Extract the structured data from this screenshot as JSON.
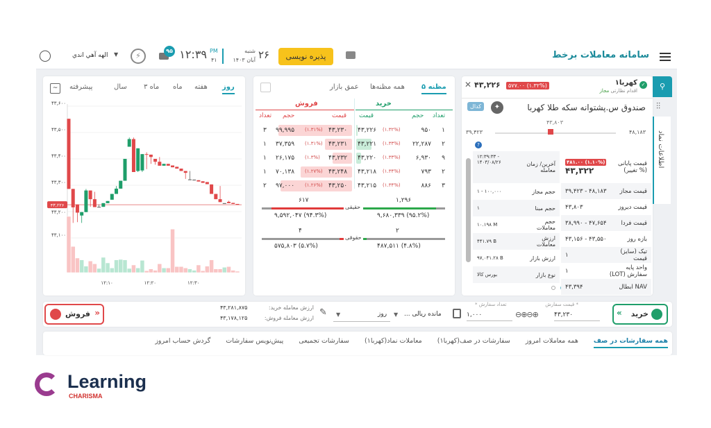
{
  "header": {
    "title": "سامانه معاملات برخط",
    "ipo_button": "پذیره نویسی",
    "day_num": "۲۶",
    "weekday": "شنبه",
    "month_year": "آبان ۱۴۰۳",
    "time": "۱۲:۳۹",
    "ampm": "PM",
    "seconds": "۴۱",
    "message_count": "۹۵",
    "user_name": "الهه آهي اندي",
    "icons": [
      "menu-icon",
      "wallet-icon",
      "mail-icon",
      "plug-icon",
      "user-icon"
    ]
  },
  "chart_panel": {
    "tabs": [
      "روز",
      "هفته",
      "ماه",
      "۳ ماه",
      "سال",
      "پیشرفته"
    ],
    "active_tab": "روز"
  },
  "chart_data": {
    "type": "candlestick",
    "ylim": [
      43100,
      43600
    ],
    "y_ticks": [
      "۴۳,۶۰۰",
      "۴۳,۵۰۰",
      "۴۳,۴۰۰",
      "۴۳,۳۰۰",
      "۴۳,۲۰۰",
      "۴۳,۱۰۰"
    ],
    "y_tick_values": [
      43600,
      43500,
      43400,
      43300,
      43200,
      43100
    ],
    "x": [
      "12:01",
      "12:02",
      "12:03",
      "12:04",
      "12:05",
      "12:06",
      "12:07",
      "12:08",
      "12:09",
      "12:10",
      "12:11",
      "12:12",
      "12:13",
      "12:14",
      "12:15",
      "12:16",
      "12:17",
      "12:18",
      "12:19",
      "12:20",
      "12:21",
      "12:22",
      "12:23",
      "12:24",
      "12:25",
      "12:26",
      "12:27",
      "12:28",
      "12:29",
      "12:30",
      "12:31",
      "12:32",
      "12:33",
      "12:34",
      "12:35",
      "12:36",
      "12:37",
      "12:38",
      "12:39",
      "12:40"
    ],
    "x_ticks": [
      {
        "at": "12:10",
        "label": "۱۲:۱۰"
      },
      {
        "at": "12:20",
        "label": "۱۲:۲۰"
      },
      {
        "at": "12:30",
        "label": "۱۲:۳۰"
      }
    ],
    "ohlc": [
      [
        43552,
        43552,
        43286,
        43286
      ],
      [
        43286,
        43286,
        43157,
        43216
      ],
      [
        43227,
        43227,
        43160,
        43196
      ],
      [
        43185,
        43198,
        43157,
        43198
      ],
      [
        43198,
        43286,
        43198,
        43280
      ],
      [
        43280,
        43280,
        43218,
        43247
      ],
      [
        43247,
        43275,
        43217,
        43217
      ],
      [
        43218,
        43227,
        43218,
        43218
      ],
      [
        43218,
        43232,
        43218,
        43232
      ],
      [
        43232,
        43240,
        43232,
        43240
      ],
      [
        43245,
        43267,
        43245,
        43267
      ],
      [
        43267,
        43297,
        43267,
        43287
      ],
      [
        43287,
        43317,
        43287,
        43317
      ],
      [
        43317,
        43400,
        43317,
        43400
      ],
      [
        43446,
        43481,
        43446,
        43475
      ],
      [
        43475,
        43481,
        43350,
        43350
      ],
      [
        43354,
        43440,
        43350,
        43440
      ],
      [
        43356,
        43418,
        43350,
        43418
      ],
      [
        43418,
        43425,
        43361,
        43416
      ],
      [
        43416,
        43416,
        43381,
        43407
      ],
      [
        43400,
        43400,
        43378,
        43389
      ],
      [
        43389,
        43407,
        43374,
        43374
      ],
      [
        43374,
        43381,
        43374,
        43381
      ],
      [
        43381,
        43381,
        43374,
        43374
      ],
      [
        43375,
        43375,
        43368,
        43368
      ],
      [
        43370,
        43370,
        43363,
        43363
      ],
      [
        43363,
        43363,
        43354,
        43354
      ],
      [
        43354,
        43354,
        43324,
        43347
      ],
      [
        43322,
        43354,
        43322,
        43322
      ],
      [
        43321,
        43321,
        43321,
        43321
      ],
      [
        43319,
        43319,
        43314,
        43314
      ],
      [
        43315,
        43315,
        43309,
        43309
      ],
      [
        43312,
        43312,
        43304,
        43304
      ],
      [
        43303,
        43303,
        43267,
        43267
      ],
      [
        43267,
        43267,
        43247,
        43247
      ],
      [
        43247,
        43297,
        43236,
        43236
      ],
      [
        43232,
        43232,
        43232,
        43232
      ],
      [
        43237,
        43241,
        43232,
        43232
      ],
      [
        43233,
        43233,
        43229,
        43229
      ],
      [
        43229,
        43229,
        43225,
        43225
      ]
    ],
    "volume": [
      243,
      113,
      63,
      55,
      28,
      50,
      38,
      18,
      66,
      42,
      20,
      55,
      57,
      55,
      18,
      33,
      20,
      53,
      8,
      16,
      10,
      38,
      20,
      20,
      188,
      26,
      26,
      20,
      16,
      10,
      33,
      8,
      28,
      55,
      16,
      16,
      23,
      26,
      10,
      6
    ],
    "last_price": 43226,
    "last_price_label": "۴۳,۲۲۶",
    "up_color": "#1f9e6a",
    "down_color": "#e0484a"
  },
  "order_book": {
    "tabs": [
      "۵ مظنه",
      "همه مظنه‌ها",
      "عمق بازار"
    ],
    "buy_title": "خرید",
    "sell_title": "فروش",
    "buy_headers": {
      "count": "تعداد",
      "volume": "حجم",
      "price": "قیمت"
    },
    "sell_headers": {
      "count": "تعداد",
      "volume": "حجم",
      "price": "قیمت"
    },
    "rows": [
      {
        "buy_count": "۱",
        "buy_volume": "۹۵۰",
        "buy_price": "۴۳,۲۲۶",
        "buy_pct": "(۱.۳۲%)",
        "buy_depth": 0.02,
        "sell_price": "۴۳,۲۳۰",
        "sell_pct": "(۱.۳۱%)",
        "sell_volume": "۹۹,۹۹۵",
        "sell_count": "۳",
        "sell_depth": 1.0
      },
      {
        "buy_count": "۲",
        "buy_volume": "۲۲,۲۸۷",
        "buy_price": "۴۳,۲۲۱",
        "buy_pct": "(۱.۳۳%)",
        "buy_depth": 0.22,
        "sell_price": "۴۳,۲۳۱",
        "sell_pct": "(۱.۳۱%)",
        "sell_volume": "۳۷,۳۵۹",
        "sell_count": "۱",
        "sell_depth": 0.37
      },
      {
        "buy_count": "۹",
        "buy_volume": "۶,۹۳۰",
        "buy_price": "۴۳,۲۲۰",
        "buy_pct": "(۱.۳۳%)",
        "buy_depth": 0.07,
        "sell_price": "۴۳,۲۳۲",
        "sell_pct": "(۱.۳%)",
        "sell_volume": "۲۶,۱۷۵",
        "sell_count": "۱",
        "sell_depth": 0.26
      },
      {
        "buy_count": "۲",
        "buy_volume": "۷۹۳",
        "buy_price": "۴۳,۲۱۸",
        "buy_pct": "(۱.۳۴%)",
        "buy_depth": 0.0,
        "sell_price": "۴۳,۲۴۸",
        "sell_pct": "(۱.۲۷%)",
        "sell_volume": "۷۰,۱۳۸",
        "sell_count": "۱",
        "sell_depth": 0.7
      },
      {
        "buy_count": "۳",
        "buy_volume": "۸۸۶",
        "buy_price": "۴۳,۲۱۵",
        "buy_pct": "(۱.۳۴%)",
        "buy_depth": 0.0,
        "sell_price": "۴۳,۲۵۰",
        "sell_pct": "(۱.۲۶%)",
        "sell_volume": "۹۷,۰۰۰",
        "sell_count": "۲",
        "sell_depth": 0.97
      }
    ],
    "real": {
      "label": "حقیقی",
      "buy_count": "۱,۲۹۶",
      "buy_value": "۹,۶۸۰,۳۳۹ (۹۵.۲%)",
      "buy_share": 0.952,
      "sell_count": "۶۱۷",
      "sell_value": "۹,۵۹۲,۰۴۷ (۹۴.۳%)",
      "sell_share": 0.943
    },
    "legal": {
      "label": "حقوقی",
      "buy_count": "۲",
      "buy_value": "۴۸۷,۵۱۱ (۴.۸%)",
      "buy_share": 0.048,
      "sell_count": "۴",
      "sell_value": "۵۷۵,۸۰۳ (۵.۷%)",
      "sell_share": 0.057
    }
  },
  "symbol": {
    "ticker": "کهربا۱",
    "supervision_label": "اقدام نظارتی",
    "status": "مجاز",
    "last_price": "۴۳,۲۲۶",
    "change": "۵۷۷.۰۰ (۱.۳۲%)",
    "full_name": "صندوق س.پشتوانه سکه طلا کهربا",
    "codal": "کدال",
    "range_min": "۳۹,۴۲۳",
    "range_max": "۴۸,۱۸۳",
    "yesterday_marker": "۴۳,۸۰۳",
    "side_tab": "اطلاعات نماد",
    "info_right": [
      {
        "label": "قیمت پایانی (% تغییر)",
        "value": "۴۳,۳۲۲",
        "badge": "۴۸۱.۰۰ (۱.۱۰%)"
      },
      {
        "label": "قیمت مجاز",
        "value": "۳۹,۴۲۳ - ۴۸,۱۸۳"
      },
      {
        "label": "قیمت دیروز",
        "value": "۴۳,۸۰۳"
      },
      {
        "label": "قیمت فردا",
        "value": "۳۸,۹۹۰ - ۴۷,۶۵۴"
      },
      {
        "label": "بازه روز",
        "value": "۴۳,۱۵۶ - ۴۳,۵۵۰"
      },
      {
        "label": "تیک (سایز) قیمت",
        "value": "۱"
      },
      {
        "label": "واحد پایه سفارش (LOT)",
        "value": "۱"
      },
      {
        "label": "NAV ابطال",
        "value": "۴۳,۳۹۴"
      }
    ],
    "info_left": [
      {
        "label": "آخرین/ زمان معامله",
        "value": "۱۲:۳۹:۳۳ - ۱۴۰۳/۰۸/۲۶"
      },
      {
        "label": "حجم مجاز",
        "value": "۱ - ۱۰۰,۰۰۰"
      },
      {
        "label": "حجم مبنا",
        "value": "۱"
      },
      {
        "label": "حجم معاملات",
        "value": "۱۰.۱۹۸ M"
      },
      {
        "label": "ارزش معاملات",
        "value": "۴۴۱.۷۹ B"
      },
      {
        "label": "ارزش بازار",
        "value": "۹۷,۰۴۱.۲۸ B"
      },
      {
        "label": "نوع بازار",
        "value": "بورس کالا"
      }
    ]
  },
  "order_bar": {
    "buy_button": "خرید",
    "sell_button": "فروش",
    "price_label": "قیمت سفارش *",
    "price_value": "۴۳,۲۳۰",
    "qty_label": "* تعداد سفارش",
    "qty_value": "۱,۰۰۰",
    "balance_select": "مانده ریالی ...",
    "validity_select": "روز",
    "buy_value_label": "ارزش معامله خرید:",
    "buy_value": "۴۳,۲۸۱,۸۷۵",
    "sell_value_label": "ارزش معامله فروش:",
    "sell_value": "۴۳,۱۷۸,۱۲۵"
  },
  "bottom_tabs": [
    "همه سفارشات در صف",
    "همه معاملات امروز",
    "سفارشات در صف(کهربا۱)",
    "معاملات نماد(کهربا۱)",
    "سفارشات تجمیعی",
    "پیش‌نویس سفارشات",
    "گردش حساب امروز"
  ],
  "logo": {
    "text": "Learning",
    "sub": "CHARISMA"
  },
  "colors": {
    "accent": "#1a9cb0",
    "buy": "#1f9e6a",
    "sell": "#e0484a",
    "ipo": "#f7c21b"
  }
}
